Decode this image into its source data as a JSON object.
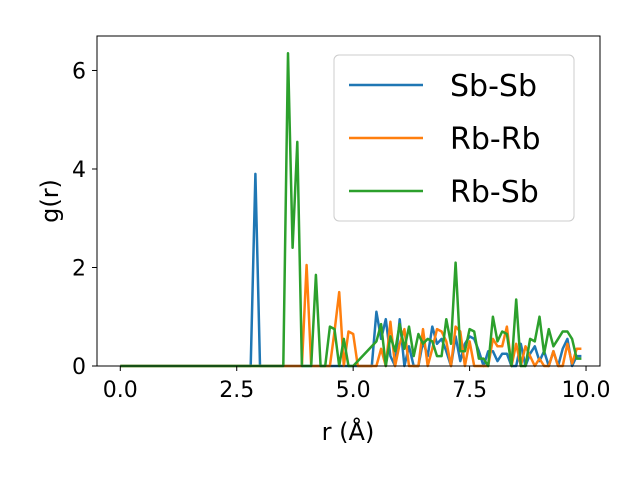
{
  "chart_data": {
    "type": "line",
    "title": "",
    "xlabel": "r (Å)",
    "ylabel": "g(r)",
    "xlim": [
      -0.5,
      10.3
    ],
    "ylim": [
      0,
      6.7
    ],
    "xticks": [
      0.0,
      2.5,
      5.0,
      7.5,
      10.0
    ],
    "xtick_labels": [
      "0.0",
      "2.5",
      "5.0",
      "7.5",
      "10.0"
    ],
    "yticks": [
      0,
      2,
      4,
      6
    ],
    "ytick_labels": [
      "0",
      "2",
      "4",
      "6"
    ],
    "grid": false,
    "legend_position": "top-right",
    "series": [
      {
        "name": "Sb-Sb",
        "color": "#1f77b4",
        "x": [
          0.0,
          2.8,
          2.9,
          3.0,
          5.4,
          5.5,
          5.6,
          5.7,
          5.8,
          5.9,
          6.0,
          6.1,
          6.2,
          6.3,
          6.4,
          6.5,
          6.6,
          6.7,
          6.8,
          6.9,
          7.0,
          7.1,
          7.2,
          7.3,
          7.4,
          7.5,
          7.6,
          7.7,
          7.8,
          7.9,
          8.0,
          8.1,
          8.2,
          8.3,
          8.4,
          8.5,
          8.6,
          8.7,
          8.8,
          8.9,
          9.0,
          9.1,
          9.2,
          9.3,
          9.4,
          9.5,
          9.6,
          9.7,
          9.8,
          9.9
        ],
        "y": [
          0.0,
          0.0,
          3.9,
          0.0,
          0.0,
          1.1,
          0.55,
          0.95,
          0.2,
          0.0,
          0.95,
          0.0,
          0.4,
          0.0,
          0.0,
          0.5,
          0.2,
          0.8,
          0.45,
          0.55,
          0.3,
          0.0,
          0.6,
          0.1,
          0.45,
          0.6,
          0.55,
          0.3,
          0.0,
          0.3,
          0.3,
          0.1,
          0.25,
          0.25,
          0.0,
          0.0,
          0.45,
          0.0,
          0.25,
          0.4,
          0.1,
          0.3,
          0.0,
          0.3,
          0.0,
          0.35,
          0.55,
          0.0,
          0.2,
          0.2
        ]
      },
      {
        "name": "Rb-Rb",
        "color": "#ff7f0e",
        "x": [
          0.0,
          3.9,
          4.0,
          4.1,
          4.2,
          4.3,
          4.5,
          4.6,
          4.7,
          4.8,
          4.9,
          5.0,
          5.1,
          5.5,
          5.6,
          5.7,
          5.8,
          5.9,
          6.0,
          6.1,
          6.2,
          6.3,
          6.4,
          6.5,
          6.6,
          6.7,
          6.8,
          6.9,
          7.0,
          7.1,
          7.2,
          7.3,
          7.4,
          7.5,
          7.6,
          7.7,
          7.8,
          7.9,
          8.0,
          8.1,
          8.2,
          8.3,
          8.4,
          8.5,
          8.6,
          8.7,
          8.8,
          8.9,
          9.0,
          9.1,
          9.2,
          9.3,
          9.4,
          9.5,
          9.6,
          9.7,
          9.8,
          9.9
        ],
        "y": [
          0.0,
          0.0,
          2.05,
          0.0,
          0.0,
          0.0,
          0.0,
          0.7,
          1.5,
          0.0,
          0.7,
          0.65,
          0.0,
          0.0,
          0.35,
          0.0,
          0.9,
          0.0,
          0.45,
          0.75,
          0.0,
          0.0,
          0.0,
          0.75,
          0.0,
          0.35,
          0.75,
          0.7,
          0.5,
          0.0,
          0.8,
          0.7,
          0.0,
          0.5,
          0.0,
          0.0,
          0.0,
          0.0,
          0.55,
          0.4,
          0.4,
          0.8,
          0.0,
          0.45,
          0.0,
          0.4,
          0.2,
          0.0,
          0.15,
          0.0,
          0.0,
          0.3,
          0.0,
          0.0,
          0.45,
          0.05,
          0.35,
          0.35
        ]
      },
      {
        "name": "Rb-Sb",
        "color": "#2ca02c",
        "x": [
          0.0,
          3.5,
          3.6,
          3.7,
          3.8,
          3.9,
          4.0,
          4.1,
          4.2,
          4.3,
          4.4,
          4.5,
          4.6,
          4.7,
          4.8,
          4.9,
          5.0,
          5.5,
          5.6,
          5.7,
          5.8,
          5.9,
          6.0,
          6.1,
          6.2,
          6.3,
          6.4,
          6.5,
          6.6,
          6.7,
          6.8,
          6.9,
          7.0,
          7.1,
          7.2,
          7.3,
          7.4,
          7.5,
          7.6,
          7.7,
          7.8,
          7.9,
          8.0,
          8.1,
          8.2,
          8.3,
          8.4,
          8.5,
          8.6,
          8.7,
          8.8,
          8.9,
          9.0,
          9.1,
          9.2,
          9.3,
          9.4,
          9.5,
          9.6,
          9.7,
          9.8,
          9.9
        ],
        "y": [
          0.0,
          0.0,
          6.35,
          2.4,
          4.55,
          0.0,
          0.0,
          0.0,
          1.85,
          0.0,
          0.0,
          0.8,
          0.75,
          0.0,
          0.55,
          0.0,
          0.0,
          0.5,
          0.85,
          0.0,
          0.6,
          0.3,
          0.85,
          0.35,
          0.8,
          0.2,
          0.65,
          0.45,
          0.55,
          0.5,
          0.2,
          0.2,
          0.95,
          0.45,
          2.1,
          0.3,
          0.3,
          0.75,
          0.7,
          0.15,
          0.15,
          0.0,
          1.0,
          0.5,
          0.7,
          0.65,
          0.0,
          1.35,
          0.0,
          0.0,
          0.55,
          0.5,
          1.0,
          0.25,
          0.75,
          0.4,
          0.55,
          0.7,
          0.7,
          0.55,
          0.15,
          0.15
        ]
      }
    ]
  }
}
